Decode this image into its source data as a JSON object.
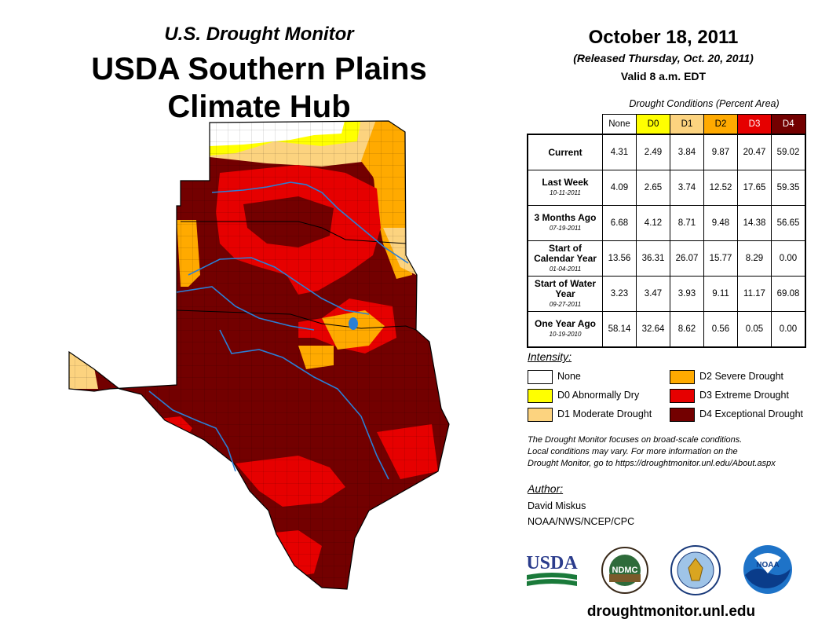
{
  "title": {
    "monitor": "U.S. Drought Monitor",
    "hub_line1": "USDA Southern Plains",
    "hub_line2": "Climate Hub"
  },
  "header": {
    "date": "October 18, 2011",
    "released": "(Released Thursday, Oct. 20, 2011)",
    "valid": "Valid 8 a.m. EDT"
  },
  "table": {
    "caption": "Drought Conditions (Percent Area)",
    "columns": [
      "None",
      "D0",
      "D1",
      "D2",
      "D3",
      "D4"
    ],
    "column_colors": [
      "#ffffff",
      "#ffff00",
      "#fcd37f",
      "#ffaa00",
      "#e60000",
      "#730000"
    ],
    "rows": [
      {
        "label": "Current",
        "date": "",
        "values": [
          "4.31",
          "2.49",
          "3.84",
          "9.87",
          "20.47",
          "59.02"
        ]
      },
      {
        "label": "Last Week",
        "date": "10-11-2011",
        "values": [
          "4.09",
          "2.65",
          "3.74",
          "12.52",
          "17.65",
          "59.35"
        ]
      },
      {
        "label": "3 Months Ago",
        "date": "07-19-2011",
        "values": [
          "6.68",
          "4.12",
          "8.71",
          "9.48",
          "14.38",
          "56.65"
        ]
      },
      {
        "label": "Start of Calendar Year",
        "date": "01-04-2011",
        "values": [
          "13.56",
          "36.31",
          "26.07",
          "15.77",
          "8.29",
          "0.00"
        ]
      },
      {
        "label": "Start of Water Year",
        "date": "09-27-2011",
        "values": [
          "3.23",
          "3.47",
          "3.93",
          "9.11",
          "11.17",
          "69.08"
        ]
      },
      {
        "label": "One Year Ago",
        "date": "10-19-2010",
        "values": [
          "58.14",
          "32.64",
          "8.62",
          "0.56",
          "0.05",
          "0.00"
        ]
      }
    ]
  },
  "legend": {
    "heading": "Intensity:",
    "items": [
      {
        "label": "None",
        "color": "#ffffff"
      },
      {
        "label": "D0 Abnormally Dry",
        "color": "#ffff00"
      },
      {
        "label": "D1 Moderate Drought",
        "color": "#fcd37f"
      },
      {
        "label": "D2 Severe Drought",
        "color": "#ffaa00"
      },
      {
        "label": "D3 Extreme Drought",
        "color": "#e60000"
      },
      {
        "label": "D4 Exceptional Drought",
        "color": "#730000"
      }
    ]
  },
  "note": {
    "line1": "The Drought Monitor focuses on broad-scale conditions.",
    "line2": "Local conditions may vary. For more information on the",
    "line3": "Drought Monitor, go to https://droughtmonitor.unl.edu/About.aspx"
  },
  "author": {
    "heading": "Author:",
    "name": "David Miskus",
    "org": "NOAA/NWS/NCEP/CPC"
  },
  "logos": {
    "usda": "USDA",
    "ndmc": "NDMC",
    "ndmc_ring": "NATIONAL DROUGHT MITIGATION CENTER",
    "noaa": "NOAA"
  },
  "footer": {
    "url": "droughtmonitor.unl.edu"
  }
}
